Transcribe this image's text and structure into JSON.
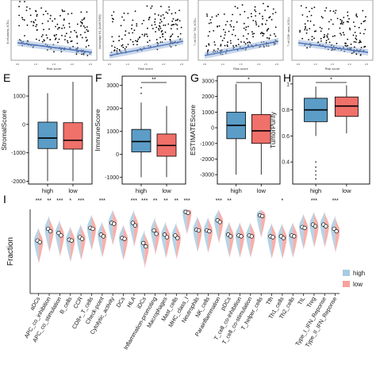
{
  "figure": {
    "panel_letters": [
      "E",
      "F",
      "G",
      "H",
      "I"
    ],
    "colors": {
      "high": "#5b9dc7",
      "low": "#f0706a",
      "high_violin": "#a9cce3",
      "low_violin": "#f6a29c",
      "point": "#000000",
      "regression": "#4a72b8"
    }
  },
  "chart_data": [
    {
      "type": "scatter",
      "panel": "top-1",
      "ylabel": "B cell plasma_XCELL",
      "xlabel": "Risk score",
      "trend": "decreasing",
      "x_ticks": [
        "0.5",
        "1.0",
        "1.5",
        "2.0",
        "2.5"
      ],
      "y_ticks": [
        "0.00",
        "0.05",
        "0.10",
        "0.15"
      ]
    },
    {
      "type": "scatter",
      "panel": "top-2",
      "ylabel": "Macrophage M1_QUANTISEQ",
      "xlabel": "Risk score",
      "trend": "increasing",
      "x_ticks": [
        "0.5",
        "1.0",
        "1.5",
        "2.0",
        "2.5"
      ],
      "y_ticks": [
        "0.00",
        "0.02",
        "0.04",
        "0.06",
        "0.08"
      ]
    },
    {
      "type": "scatter",
      "panel": "top-3",
      "ylabel": "T cell CD4+ Th2_XCELL",
      "xlabel": "Risk score",
      "trend": "increasing",
      "x_ticks": [
        "0.5",
        "1.0",
        "1.5",
        "2.0",
        "2.5"
      ],
      "y_ticks": [
        "0.00",
        "0.05",
        "0.10",
        "0.15",
        "0.20"
      ]
    },
    {
      "type": "scatter",
      "panel": "top-4",
      "ylabel": "T cell CD8+ naive_XCELL",
      "xlabel": "Risk score",
      "trend": "decreasing",
      "x_ticks": [
        "0.5",
        "1.0",
        "1.5",
        "2.0",
        "2.5"
      ],
      "y_ticks": [
        "0.00",
        "0.02",
        "0.04",
        "0.06"
      ]
    },
    {
      "type": "box",
      "panel": "E",
      "ylabel": "StromalScore",
      "categories": [
        "high",
        "low"
      ],
      "significance": "",
      "ylim": [
        -2100,
        1700
      ],
      "yticks": [
        -2000,
        -1000,
        0,
        1000
      ],
      "boxes": [
        {
          "name": "high",
          "whisker_low": -2000,
          "q1": -850,
          "median": -480,
          "q3": 80,
          "whisker_high": 1100,
          "outliers": []
        },
        {
          "name": "low",
          "whisker_low": -2000,
          "q1": -870,
          "median": -560,
          "q3": 60,
          "whisker_high": 1500,
          "outliers": []
        }
      ]
    },
    {
      "type": "box",
      "panel": "F",
      "ylabel": "ImmuneScore",
      "categories": [
        "high",
        "low"
      ],
      "significance": "**",
      "ylim": [
        -1300,
        3400
      ],
      "yticks": [
        -1000,
        0,
        1000,
        2000,
        3000
      ],
      "boxes": [
        {
          "name": "high",
          "whisker_low": -1000,
          "q1": 100,
          "median": 550,
          "q3": 1080,
          "whisker_high": 2250,
          "outliers": [
            2650,
            2900
          ]
        },
        {
          "name": "low",
          "whisker_low": -1000,
          "q1": -90,
          "median": 380,
          "q3": 880,
          "whisker_high": 2100,
          "outliers": []
        }
      ]
    },
    {
      "type": "box",
      "panel": "G",
      "ylabel": "ESTIMATEScore",
      "categories": [
        "high",
        "low"
      ],
      "significance": "*",
      "ylim": [
        -3600,
        3300
      ],
      "yticks": [
        -3000,
        -2000,
        -1000,
        0,
        1000,
        2000,
        3000
      ],
      "boxes": [
        {
          "name": "high",
          "whisker_low": -3000,
          "q1": -700,
          "median": 150,
          "q3": 1000,
          "whisker_high": 2800,
          "outliers": []
        },
        {
          "name": "low",
          "whisker_low": -3000,
          "q1": -1000,
          "median": -200,
          "q3": 850,
          "whisker_high": 2900,
          "outliers": []
        }
      ]
    },
    {
      "type": "box",
      "panel": "H",
      "ylabel": "TumorPurity",
      "categories": [
        "high",
        "low"
      ],
      "significance": "*",
      "ylim": [
        0.23,
        1.06
      ],
      "yticks": [
        0.4,
        0.6,
        0.8,
        1.0
      ],
      "boxes": [
        {
          "name": "high",
          "whisker_low": 0.6,
          "q1": 0.71,
          "median": 0.8,
          "q3": 0.89,
          "whisker_high": 0.98,
          "outliers": [
            0.4,
            0.36,
            0.33,
            0.3,
            0.27
          ]
        },
        {
          "name": "low",
          "whisker_low": 0.62,
          "q1": 0.75,
          "median": 0.83,
          "q3": 0.9,
          "whisker_high": 0.99,
          "outliers": []
        }
      ]
    },
    {
      "type": "violin",
      "panel": "I",
      "ylabel": "Fraction",
      "legend": [
        "high",
        "low"
      ],
      "legend_position": "right",
      "ylim": [
        0.0,
        1.0
      ],
      "categories": [
        "aDCs",
        "APC_co_inhibition",
        "APC_co_stimulation",
        "B_cells",
        "CCR",
        "CD8+_T_cells",
        "Check-point",
        "Cytolytic_activity",
        "DCs",
        "HLA",
        "iDCs",
        "Inflammation-promoting",
        "Macrophages",
        "Mast_cells",
        "MHC_class_I",
        "Neutrophils",
        "NK_cells",
        "Parainflammation",
        "pDCs",
        "T_cell_co-inhibition",
        "T_cell_co-stimulation",
        "T_helper_cells",
        "Tfh",
        "Th1_cells",
        "Th2_cells",
        "TIL",
        "Treg",
        "Type_I_IFN_Reponse",
        "Type_II_IFN_Reponse"
      ],
      "significance": [
        "***",
        "**",
        "***",
        "*",
        "***",
        "",
        "***",
        "",
        "",
        "***",
        "***",
        "**",
        "**",
        "**",
        "***",
        "",
        "",
        "***",
        "**",
        "",
        "",
        "",
        "",
        "*",
        "",
        "",
        "***",
        "",
        "***"
      ],
      "high_medians": [
        0.63,
        0.77,
        0.72,
        0.64,
        0.67,
        0.78,
        0.7,
        0.84,
        0.66,
        0.84,
        0.6,
        0.75,
        0.7,
        0.69,
        0.97,
        0.76,
        0.75,
        0.87,
        0.7,
        0.69,
        0.69,
        0.93,
        0.68,
        0.68,
        0.69,
        0.79,
        0.82,
        0.82,
        0.77
      ],
      "low_medians": [
        0.61,
        0.74,
        0.69,
        0.63,
        0.65,
        0.77,
        0.68,
        0.83,
        0.65,
        0.81,
        0.56,
        0.71,
        0.67,
        0.66,
        0.96,
        0.75,
        0.74,
        0.85,
        0.68,
        0.68,
        0.68,
        0.92,
        0.67,
        0.66,
        0.68,
        0.78,
        0.8,
        0.8,
        0.74
      ]
    }
  ]
}
